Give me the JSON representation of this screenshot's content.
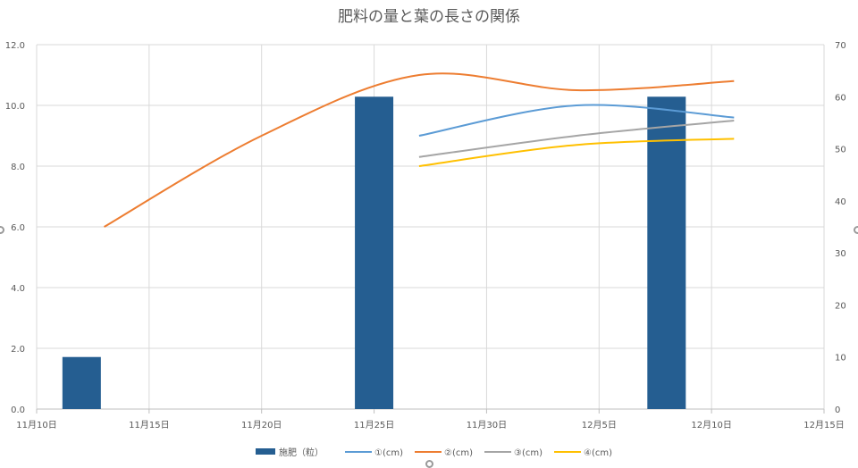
{
  "chart_data": {
    "type": "bar+line",
    "title": "肥料の量と葉の長さの関係",
    "x_axis": {
      "type": "date",
      "min": "2023-11-10",
      "max": "2023-12-15",
      "ticks": [
        {
          "date": "2023-11-10",
          "label": "11月10日"
        },
        {
          "date": "2023-11-15",
          "label": "11月15日"
        },
        {
          "date": "2023-11-20",
          "label": "11月20日"
        },
        {
          "date": "2023-11-25",
          "label": "11月25日"
        },
        {
          "date": "2023-11-30",
          "label": "11月30日"
        },
        {
          "date": "2023-12-05",
          "label": "12月5日"
        },
        {
          "date": "2023-12-10",
          "label": "12月10日"
        },
        {
          "date": "2023-12-15",
          "label": "12月15日"
        }
      ]
    },
    "y_left": {
      "min": 0,
      "max": 12,
      "ticks": [
        "0.0",
        "2.0",
        "4.0",
        "6.0",
        "8.0",
        "10.0",
        "12.0"
      ]
    },
    "y_right": {
      "min": 0,
      "max": 70,
      "ticks": [
        "0",
        "10",
        "20",
        "30",
        "40",
        "50",
        "60",
        "70"
      ]
    },
    "grid": true,
    "legend_position": "bottom",
    "bars": {
      "name": "施肥（粒）",
      "color": "#255e91",
      "axis": "right",
      "points": [
        {
          "date": "2023-11-12",
          "value": 10
        },
        {
          "date": "2023-11-25",
          "value": 60
        },
        {
          "date": "2023-12-08",
          "value": 60
        }
      ]
    },
    "series": [
      {
        "name": "①(cm)",
        "color": "#5b9bd5",
        "axis": "left",
        "points": [
          [
            "2023-11-27",
            9.0
          ],
          [
            "2023-12-04",
            10.0
          ],
          [
            "2023-12-11",
            9.6
          ]
        ]
      },
      {
        "name": "②(cm)",
        "color": "#ed7d31",
        "axis": "left",
        "points": [
          [
            "2023-11-13",
            6.0
          ],
          [
            "2023-11-20",
            9.0
          ],
          [
            "2023-11-27",
            11.0
          ],
          [
            "2023-12-04",
            10.5
          ],
          [
            "2023-12-11",
            10.8
          ]
        ]
      },
      {
        "name": "③(cm)",
        "color": "#a5a5a5",
        "axis": "left",
        "points": [
          [
            "2023-11-27",
            8.3
          ],
          [
            "2023-12-04",
            9.0
          ],
          [
            "2023-12-11",
            9.5
          ]
        ]
      },
      {
        "name": "④(cm)",
        "color": "#ffc000",
        "axis": "left",
        "points": [
          [
            "2023-11-27",
            8.0
          ],
          [
            "2023-12-04",
            8.7
          ],
          [
            "2023-12-11",
            8.9
          ]
        ]
      }
    ]
  }
}
